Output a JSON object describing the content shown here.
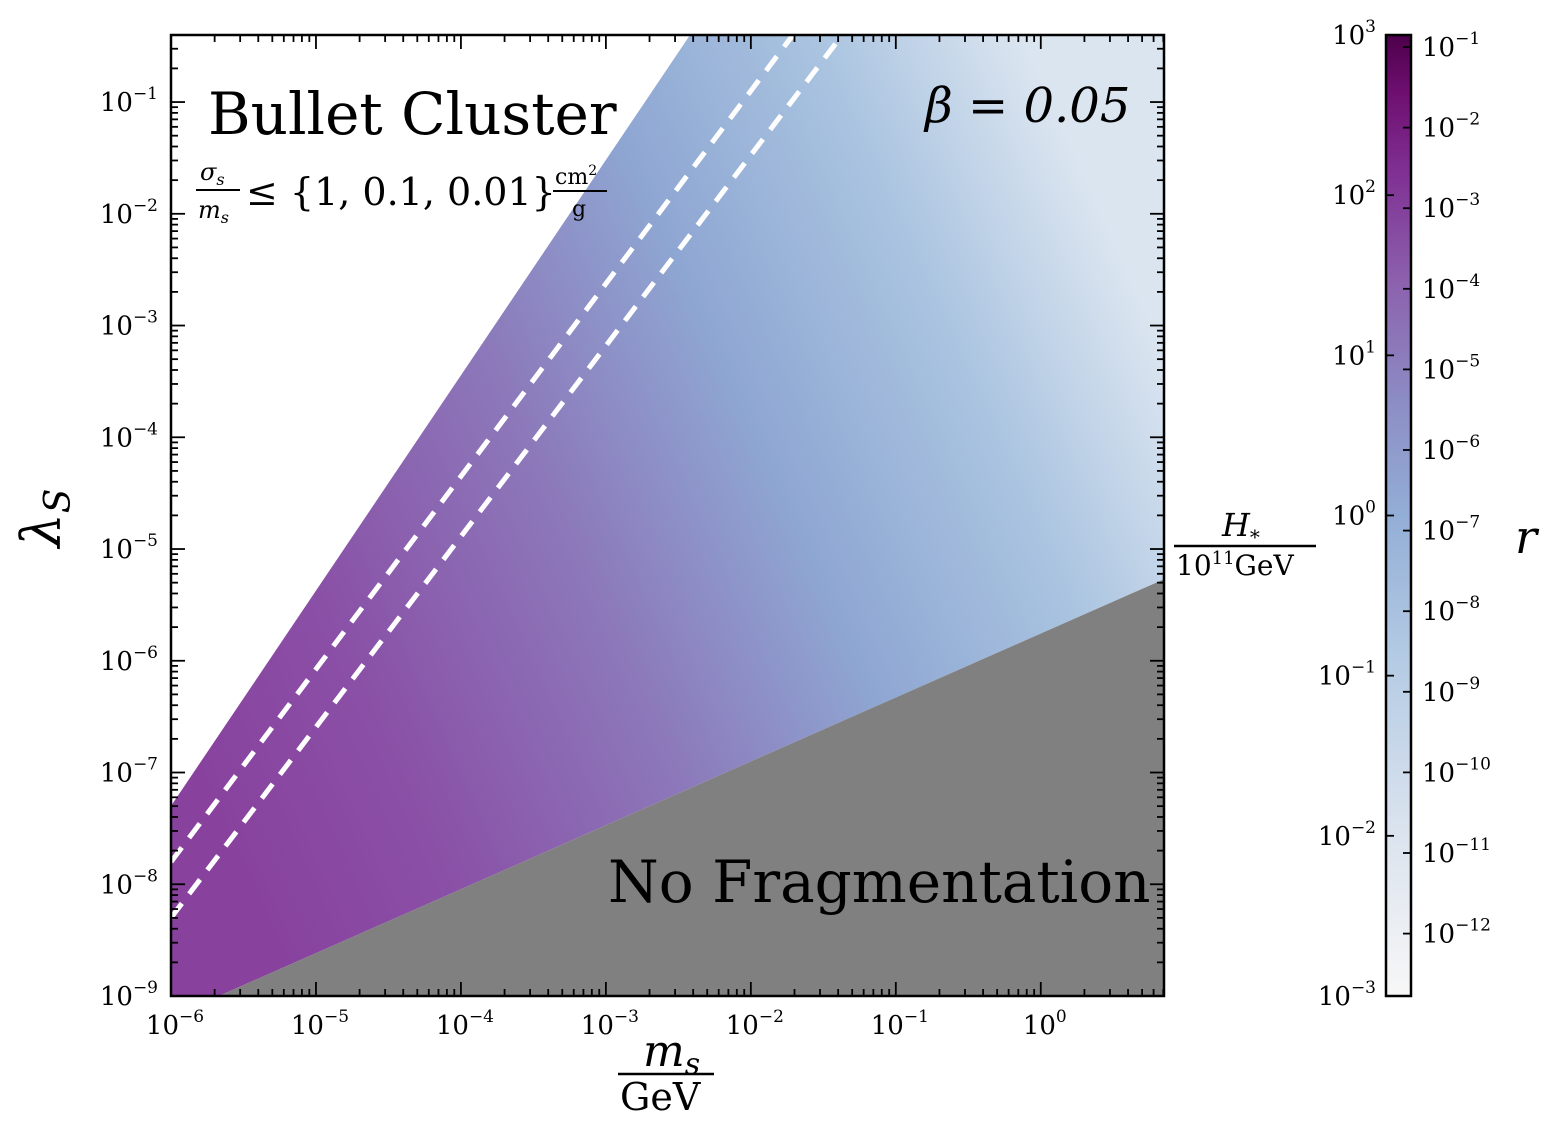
{
  "chart_data": {
    "type": "heatmap",
    "xscale": "log",
    "yscale": "log",
    "xlim_exp": [
      -6,
      0.85
    ],
    "ylim_exp": [
      -9,
      -0.4
    ],
    "x_ticks": [
      {
        "base": "10",
        "exp": "−6"
      },
      {
        "base": "10",
        "exp": "−5"
      },
      {
        "base": "10",
        "exp": "−4"
      },
      {
        "base": "10",
        "exp": "−3"
      },
      {
        "base": "10",
        "exp": "−2"
      },
      {
        "base": "10",
        "exp": "−1"
      },
      {
        "base": "10",
        "exp": "0"
      }
    ],
    "y_ticks": [
      {
        "base": "10",
        "exp": "−9"
      },
      {
        "base": "10",
        "exp": "−8"
      },
      {
        "base": "10",
        "exp": "−7"
      },
      {
        "base": "10",
        "exp": "−6"
      },
      {
        "base": "10",
        "exp": "−5"
      },
      {
        "base": "10",
        "exp": "−4"
      },
      {
        "base": "10",
        "exp": "−3"
      },
      {
        "base": "10",
        "exp": "−2"
      },
      {
        "base": "10",
        "exp": "−1"
      }
    ],
    "xlabel_num": "m",
    "xlabel_num_sub": "s",
    "xlabel_den": "GeV",
    "ylabel": "λ",
    "ylabel_sub": "S",
    "annotations": {
      "title": "Bullet Cluster",
      "constraint_sigma": "σ",
      "constraint_sigma_sub": "s",
      "constraint_mass": "m",
      "constraint_mass_sub": "s",
      "constraint_set": "≤ {1, 0.1, 0.01}",
      "constraint_unit_num": "cm",
      "constraint_unit_num_sup": "2",
      "constraint_unit_den": "g",
      "beta": "β = 0.05",
      "no_frag": "No Fragmentation"
    },
    "boundaries": {
      "upper_edge": [
        [
          -6,
          -7.3
        ],
        [
          -2.42,
          -0.4
        ]
      ],
      "lower_edge": [
        [
          -5.67,
          -9
        ],
        [
          0.85,
          -5.27
        ]
      ],
      "dashed_lines": [
        {
          "label": "0.1",
          "points": [
            [
              -6,
              -7.8
            ],
            [
              -1.71,
              -0.4
            ]
          ]
        },
        {
          "label": "0.01",
          "points": [
            [
              -6,
              -8.3
            ],
            [
              -1.37,
              -0.4
            ]
          ]
        }
      ]
    },
    "regions": [
      {
        "name": "No Fragmentation",
        "color": "#808080"
      }
    ],
    "colorbar": {
      "label": "r",
      "left_label_base": "H",
      "left_label_sub": "*",
      "left_label_den_base": "10",
      "left_label_den_exp": "11",
      "left_label_den_unit": "GeV",
      "left_ticks": [
        {
          "base": "10",
          "exp": "3"
        },
        {
          "base": "10",
          "exp": "2"
        },
        {
          "base": "10",
          "exp": "1"
        },
        {
          "base": "10",
          "exp": "0"
        },
        {
          "base": "10",
          "exp": "−1"
        },
        {
          "base": "10",
          "exp": "−2"
        },
        {
          "base": "10",
          "exp": "−3"
        }
      ],
      "right_ticks": [
        {
          "base": "10",
          "exp": "−1"
        },
        {
          "base": "10",
          "exp": "−2"
        },
        {
          "base": "10",
          "exp": "−3"
        },
        {
          "base": "10",
          "exp": "−4"
        },
        {
          "base": "10",
          "exp": "−5"
        },
        {
          "base": "10",
          "exp": "−6"
        },
        {
          "base": "10",
          "exp": "−7"
        },
        {
          "base": "10",
          "exp": "−8"
        },
        {
          "base": "10",
          "exp": "−9"
        },
        {
          "base": "10",
          "exp": "−10"
        },
        {
          "base": "10",
          "exp": "−11"
        },
        {
          "base": "10",
          "exp": "−12"
        }
      ],
      "colors": [
        "#f7f7f7",
        "#bfd3e6",
        "#9ebcda",
        "#8c96c6",
        "#8c6bb1",
        "#88419d",
        "#6e016b",
        "#4d004b"
      ]
    }
  }
}
